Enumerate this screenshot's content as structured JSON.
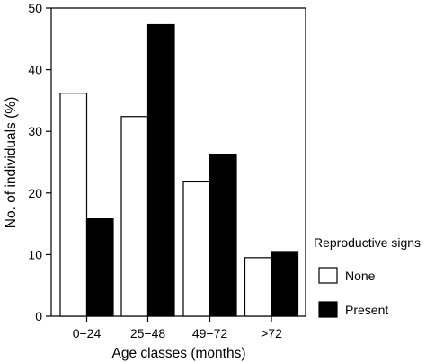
{
  "chart_data": {
    "type": "bar",
    "xlabel": "Age classes (months)",
    "ylabel": "No. of individuals (%)",
    "ylim": [
      0,
      50
    ],
    "yticks": [
      0,
      10,
      20,
      30,
      40,
      50
    ],
    "categories": [
      "0−24",
      "25−48",
      "49−72",
      ">72"
    ],
    "series": [
      {
        "name": "None",
        "values": [
          36.2,
          32.4,
          21.8,
          9.5
        ]
      },
      {
        "name": "Present",
        "values": [
          15.8,
          47.3,
          26.3,
          10.5
        ]
      }
    ],
    "legend": {
      "title": "Reproductive signs",
      "placement": "right"
    },
    "colors": {
      "None": "#ffffff",
      "Present": "#000000",
      "outline": "#000000"
    },
    "grid": false
  }
}
